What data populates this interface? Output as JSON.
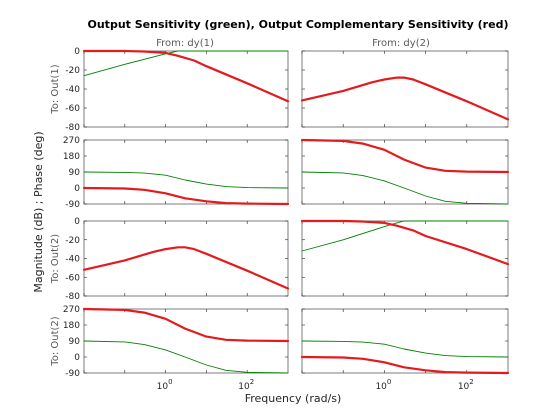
{
  "chart_data": {
    "type": "line",
    "title": "Output Sensitivity (green), Output Complementary Sensitivity (red)",
    "xlabel": "Frequency  (rad/s)",
    "ylabel": "Magnitude (dB) ; Phase (deg)",
    "x_scale": "log",
    "xlim": [
      0.01,
      1000
    ],
    "grid": false,
    "colors": {
      "green": "#008000",
      "red": "#e41a1c"
    },
    "columns": [
      "From: dy(1)",
      "From: dy(2)"
    ],
    "rows": [
      {
        "label": "To: Out(1)",
        "kind": "magnitude",
        "ylim": [
          -80,
          0
        ]
      },
      {
        "label": "",
        "kind": "phase",
        "ylim": [
          -90,
          270
        ]
      },
      {
        "label": "To: Out(2)",
        "kind": "magnitude",
        "ylim": [
          -80,
          0
        ]
      },
      {
        "label": "To: Out(2)",
        "kind": "phase",
        "ylim": [
          -90,
          270
        ]
      }
    ],
    "row_tick_labels": [
      [
        "0",
        "-20",
        "-40",
        "-60",
        "-80"
      ],
      [
        "270",
        "180",
        "90",
        "0",
        "-90"
      ],
      [
        "0",
        "-20",
        "-40",
        "-60",
        "-80"
      ],
      [
        "270",
        "180",
        "90",
        "0",
        "-90"
      ]
    ],
    "x_tick_labels": [
      {
        "base": "10",
        "exp": "0"
      },
      {
        "base": "10",
        "exp": "2"
      }
    ],
    "panels": [
      {
        "row": 0,
        "col": 0,
        "series": [
          {
            "color": "green",
            "x": [
              0.01,
              0.1,
              1,
              2,
              3,
              5,
              10,
              100,
              1000
            ],
            "y": [
              -26,
              -14,
              -3,
              0,
              0,
              0,
              0,
              0,
              0
            ]
          },
          {
            "color": "red",
            "x": [
              0.01,
              0.1,
              0.3,
              1,
              2,
              5,
              10,
              100,
              1000
            ],
            "y": [
              0,
              0,
              -0.5,
              -2,
              -5,
              -10,
              -16,
              -34,
              -53
            ]
          }
        ]
      },
      {
        "row": 0,
        "col": 1,
        "series": [
          {
            "color": "red",
            "x": [
              0.01,
              0.1,
              0.5,
              1,
              2,
              3,
              5,
              10,
              100,
              1000
            ],
            "y": [
              -52,
              -42,
              -33,
              -30,
              -28,
              -28,
              -30,
              -35,
              -53,
              -72
            ]
          }
        ]
      },
      {
        "row": 1,
        "col": 0,
        "series": [
          {
            "color": "green",
            "x": [
              0.01,
              0.1,
              0.3,
              1,
              3,
              10,
              30,
              100,
              1000
            ],
            "y": [
              90,
              88,
              84,
              72,
              45,
              22,
              8,
              2,
              0
            ]
          },
          {
            "color": "red",
            "x": [
              0.01,
              0.1,
              0.3,
              1,
              3,
              10,
              30,
              100,
              1000
            ],
            "y": [
              0,
              -3,
              -10,
              -30,
              -58,
              -75,
              -85,
              -88,
              -90
            ]
          }
        ]
      },
      {
        "row": 1,
        "col": 1,
        "series": [
          {
            "color": "red",
            "x": [
              0.01,
              0.1,
              0.3,
              1,
              3,
              10,
              30,
              100,
              1000
            ],
            "y": [
              270,
              265,
              250,
              215,
              160,
              115,
              97,
              92,
              90
            ]
          },
          {
            "color": "green",
            "x": [
              0.01,
              0.1,
              0.3,
              1,
              3,
              10,
              30,
              100,
              1000
            ],
            "y": [
              90,
              85,
              70,
              40,
              0,
              -45,
              -75,
              -86,
              -90
            ]
          }
        ]
      },
      {
        "row": 2,
        "col": 0,
        "series": [
          {
            "color": "red",
            "x": [
              0.01,
              0.1,
              0.5,
              1,
              2,
              3,
              5,
              10,
              100,
              1000
            ],
            "y": [
              -52,
              -42,
              -33,
              -30,
              -28,
              -28,
              -30,
              -35,
              -53,
              -72
            ]
          }
        ]
      },
      {
        "row": 2,
        "col": 1,
        "series": [
          {
            "color": "green",
            "x": [
              0.01,
              0.1,
              1,
              2,
              3,
              5,
              10,
              100,
              1000
            ],
            "y": [
              -32,
              -20,
              -6,
              -2,
              0,
              0,
              0,
              0,
              0
            ]
          },
          {
            "color": "red",
            "x": [
              0.01,
              0.1,
              0.3,
              1,
              2,
              5,
              10,
              100,
              1000
            ],
            "y": [
              0,
              0,
              -0.5,
              -2,
              -5,
              -10,
              -16,
              -30,
              -46
            ]
          }
        ]
      },
      {
        "row": 3,
        "col": 0,
        "series": [
          {
            "color": "red",
            "x": [
              0.01,
              0.1,
              0.3,
              1,
              3,
              10,
              30,
              100,
              1000
            ],
            "y": [
              270,
              265,
              250,
              215,
              160,
              115,
              97,
              92,
              90
            ]
          },
          {
            "color": "green",
            "x": [
              0.01,
              0.1,
              0.3,
              1,
              3,
              10,
              30,
              100,
              1000
            ],
            "y": [
              90,
              85,
              70,
              40,
              0,
              -45,
              -75,
              -86,
              -90
            ]
          }
        ]
      },
      {
        "row": 3,
        "col": 1,
        "series": [
          {
            "color": "green",
            "x": [
              0.01,
              0.1,
              0.3,
              1,
              3,
              10,
              30,
              100,
              1000
            ],
            "y": [
              90,
              88,
              84,
              72,
              45,
              22,
              8,
              2,
              0
            ]
          },
          {
            "color": "red",
            "x": [
              0.01,
              0.1,
              0.3,
              1,
              3,
              10,
              30,
              100,
              1000
            ],
            "y": [
              0,
              -3,
              -10,
              -30,
              -58,
              -75,
              -85,
              -88,
              -90
            ]
          }
        ]
      }
    ]
  }
}
